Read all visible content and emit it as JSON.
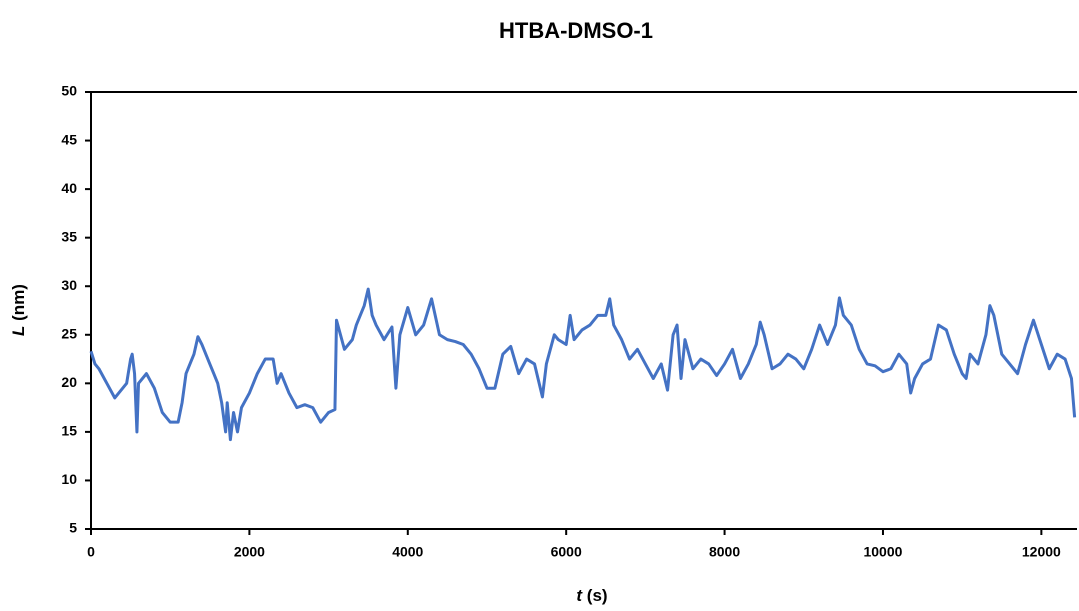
{
  "chart_data": {
    "type": "line",
    "title": "HTBA-DMSO-1",
    "x_label": "t (s)",
    "y_label": "L (nm)",
    "xlim": [
      0,
      12450
    ],
    "ylim": [
      5,
      50
    ],
    "xticks": [
      0,
      2000,
      4000,
      6000,
      8000,
      10000,
      12000
    ],
    "yticks": [
      5,
      10,
      15,
      20,
      25,
      30,
      35,
      40,
      45,
      50
    ],
    "grid": false,
    "x": [
      0,
      50,
      100,
      200,
      300,
      400,
      450,
      500,
      520,
      550,
      580,
      600,
      700,
      800,
      900,
      1000,
      1100,
      1150,
      1200,
      1300,
      1350,
      1400,
      1500,
      1550,
      1600,
      1650,
      1700,
      1720,
      1760,
      1800,
      1850,
      1900,
      2000,
      2100,
      2200,
      2300,
      2350,
      2400,
      2500,
      2600,
      2700,
      2800,
      2900,
      3000,
      3080,
      3100,
      3150,
      3200,
      3300,
      3350,
      3400,
      3450,
      3500,
      3550,
      3600,
      3700,
      3800,
      3850,
      3900,
      4000,
      4100,
      4200,
      4300,
      4400,
      4500,
      4600,
      4700,
      4800,
      4900,
      5000,
      5100,
      5200,
      5300,
      5400,
      5500,
      5600,
      5700,
      5750,
      5850,
      5900,
      6000,
      6050,
      6100,
      6200,
      6300,
      6400,
      6500,
      6550,
      6600,
      6700,
      6800,
      6900,
      7000,
      7100,
      7200,
      7280,
      7350,
      7400,
      7450,
      7500,
      7600,
      7700,
      7800,
      7900,
      8000,
      8100,
      8200,
      8300,
      8400,
      8450,
      8500,
      8600,
      8700,
      8800,
      8900,
      9000,
      9100,
      9200,
      9300,
      9400,
      9450,
      9500,
      9600,
      9700,
      9800,
      9900,
      10000,
      10100,
      10200,
      10300,
      10350,
      10400,
      10500,
      10600,
      10700,
      10800,
      10900,
      11000,
      11050,
      11100,
      11200,
      11300,
      11350,
      11400,
      11500,
      11600,
      11700,
      11800,
      11900,
      12000,
      12100,
      12200,
      12300,
      12380,
      12420
    ],
    "series": [
      {
        "name": "L",
        "color": "#4472c4",
        "values": [
          23.3,
          22,
          21.5,
          20,
          18.5,
          19.5,
          20,
          22.5,
          23,
          21,
          15,
          20,
          21,
          19.5,
          17,
          16,
          16,
          18,
          21,
          23,
          24.8,
          24,
          22,
          21,
          20,
          18,
          15,
          18,
          14.2,
          17,
          15,
          17.5,
          19,
          21,
          22.5,
          22.5,
          20,
          21,
          19,
          17.5,
          17.8,
          17.5,
          16,
          17,
          17.3,
          26.5,
          25,
          23.5,
          24.5,
          26,
          27,
          28,
          29.7,
          27,
          26,
          24.5,
          25.8,
          19.5,
          25,
          27.8,
          25,
          26,
          28.7,
          25,
          24.5,
          24.3,
          24,
          23,
          21.5,
          19.5,
          19.5,
          23,
          23.8,
          21,
          22.5,
          22,
          18.6,
          22,
          25,
          24.5,
          24,
          27,
          24.5,
          25.5,
          26,
          27,
          27,
          28.7,
          26,
          24.5,
          22.5,
          23.5,
          22,
          20.5,
          22,
          19.3,
          25,
          26,
          20.5,
          24.5,
          21.5,
          22.5,
          22,
          20.8,
          22,
          23.5,
          20.5,
          22,
          24,
          26.3,
          25,
          21.5,
          22,
          23,
          22.5,
          21.5,
          23.5,
          26,
          24,
          26,
          28.8,
          27,
          26,
          23.5,
          22,
          21.8,
          21.2,
          21.5,
          23,
          22,
          19,
          20.5,
          22,
          22.5,
          26,
          25.5,
          23,
          21,
          20.5,
          23,
          22,
          25,
          28,
          27,
          23,
          22,
          21,
          24,
          26.5,
          24,
          21.5,
          23,
          22.5,
          20.5,
          16.5
        ]
      }
    ]
  }
}
